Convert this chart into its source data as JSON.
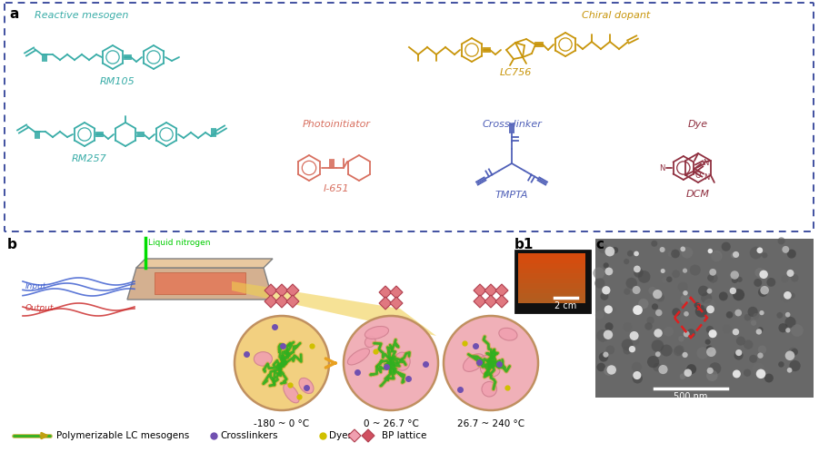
{
  "panel_a_label": "a",
  "panel_b_label": "b",
  "panel_b1_label": "b1",
  "panel_c_label": "c",
  "reactive_mesogen_label": "Reactive mesogen",
  "chiral_dopant_label": "Chiral dopant",
  "photoinitiator_label": "Photoinitiator",
  "crosslinker_label": "Cross-linker",
  "dye_label": "Dye",
  "rm105_label": "RM105",
  "rm257_label": "RM257",
  "lc756_label": "LC756",
  "i651_label": "I-651",
  "tmpta_label": "TMPTA",
  "dcm_label": "DCM",
  "teal_color": "#3aada8",
  "gold_color": "#c8950a",
  "salmon_color": "#d87060",
  "blue_color": "#5060b8",
  "darkred_color": "#903040",
  "bg_color": "#ffffff",
  "box_border_color": "#4050a0",
  "temp1_label": "-180 ~ 0 °C",
  "temp2_label": "0 ~ 26.7 °C",
  "temp3_label": "26.7 ~ 240 °C",
  "liquid_nitrogen_label": "Liquid nitrogen",
  "input_label": "Input",
  "output_label": "Output",
  "legend_lc": "Polymerizable LC mesogens",
  "legend_cl": "Crosslinkers",
  "legend_dy": "Dyes",
  "legend_bp": "BP lattice",
  "scale_b1": "2 cm",
  "scale_c": "500 nm",
  "arrow_color": "#e8a020",
  "green_line_color": "#40b020",
  "olive_line_color": "#c8a010"
}
